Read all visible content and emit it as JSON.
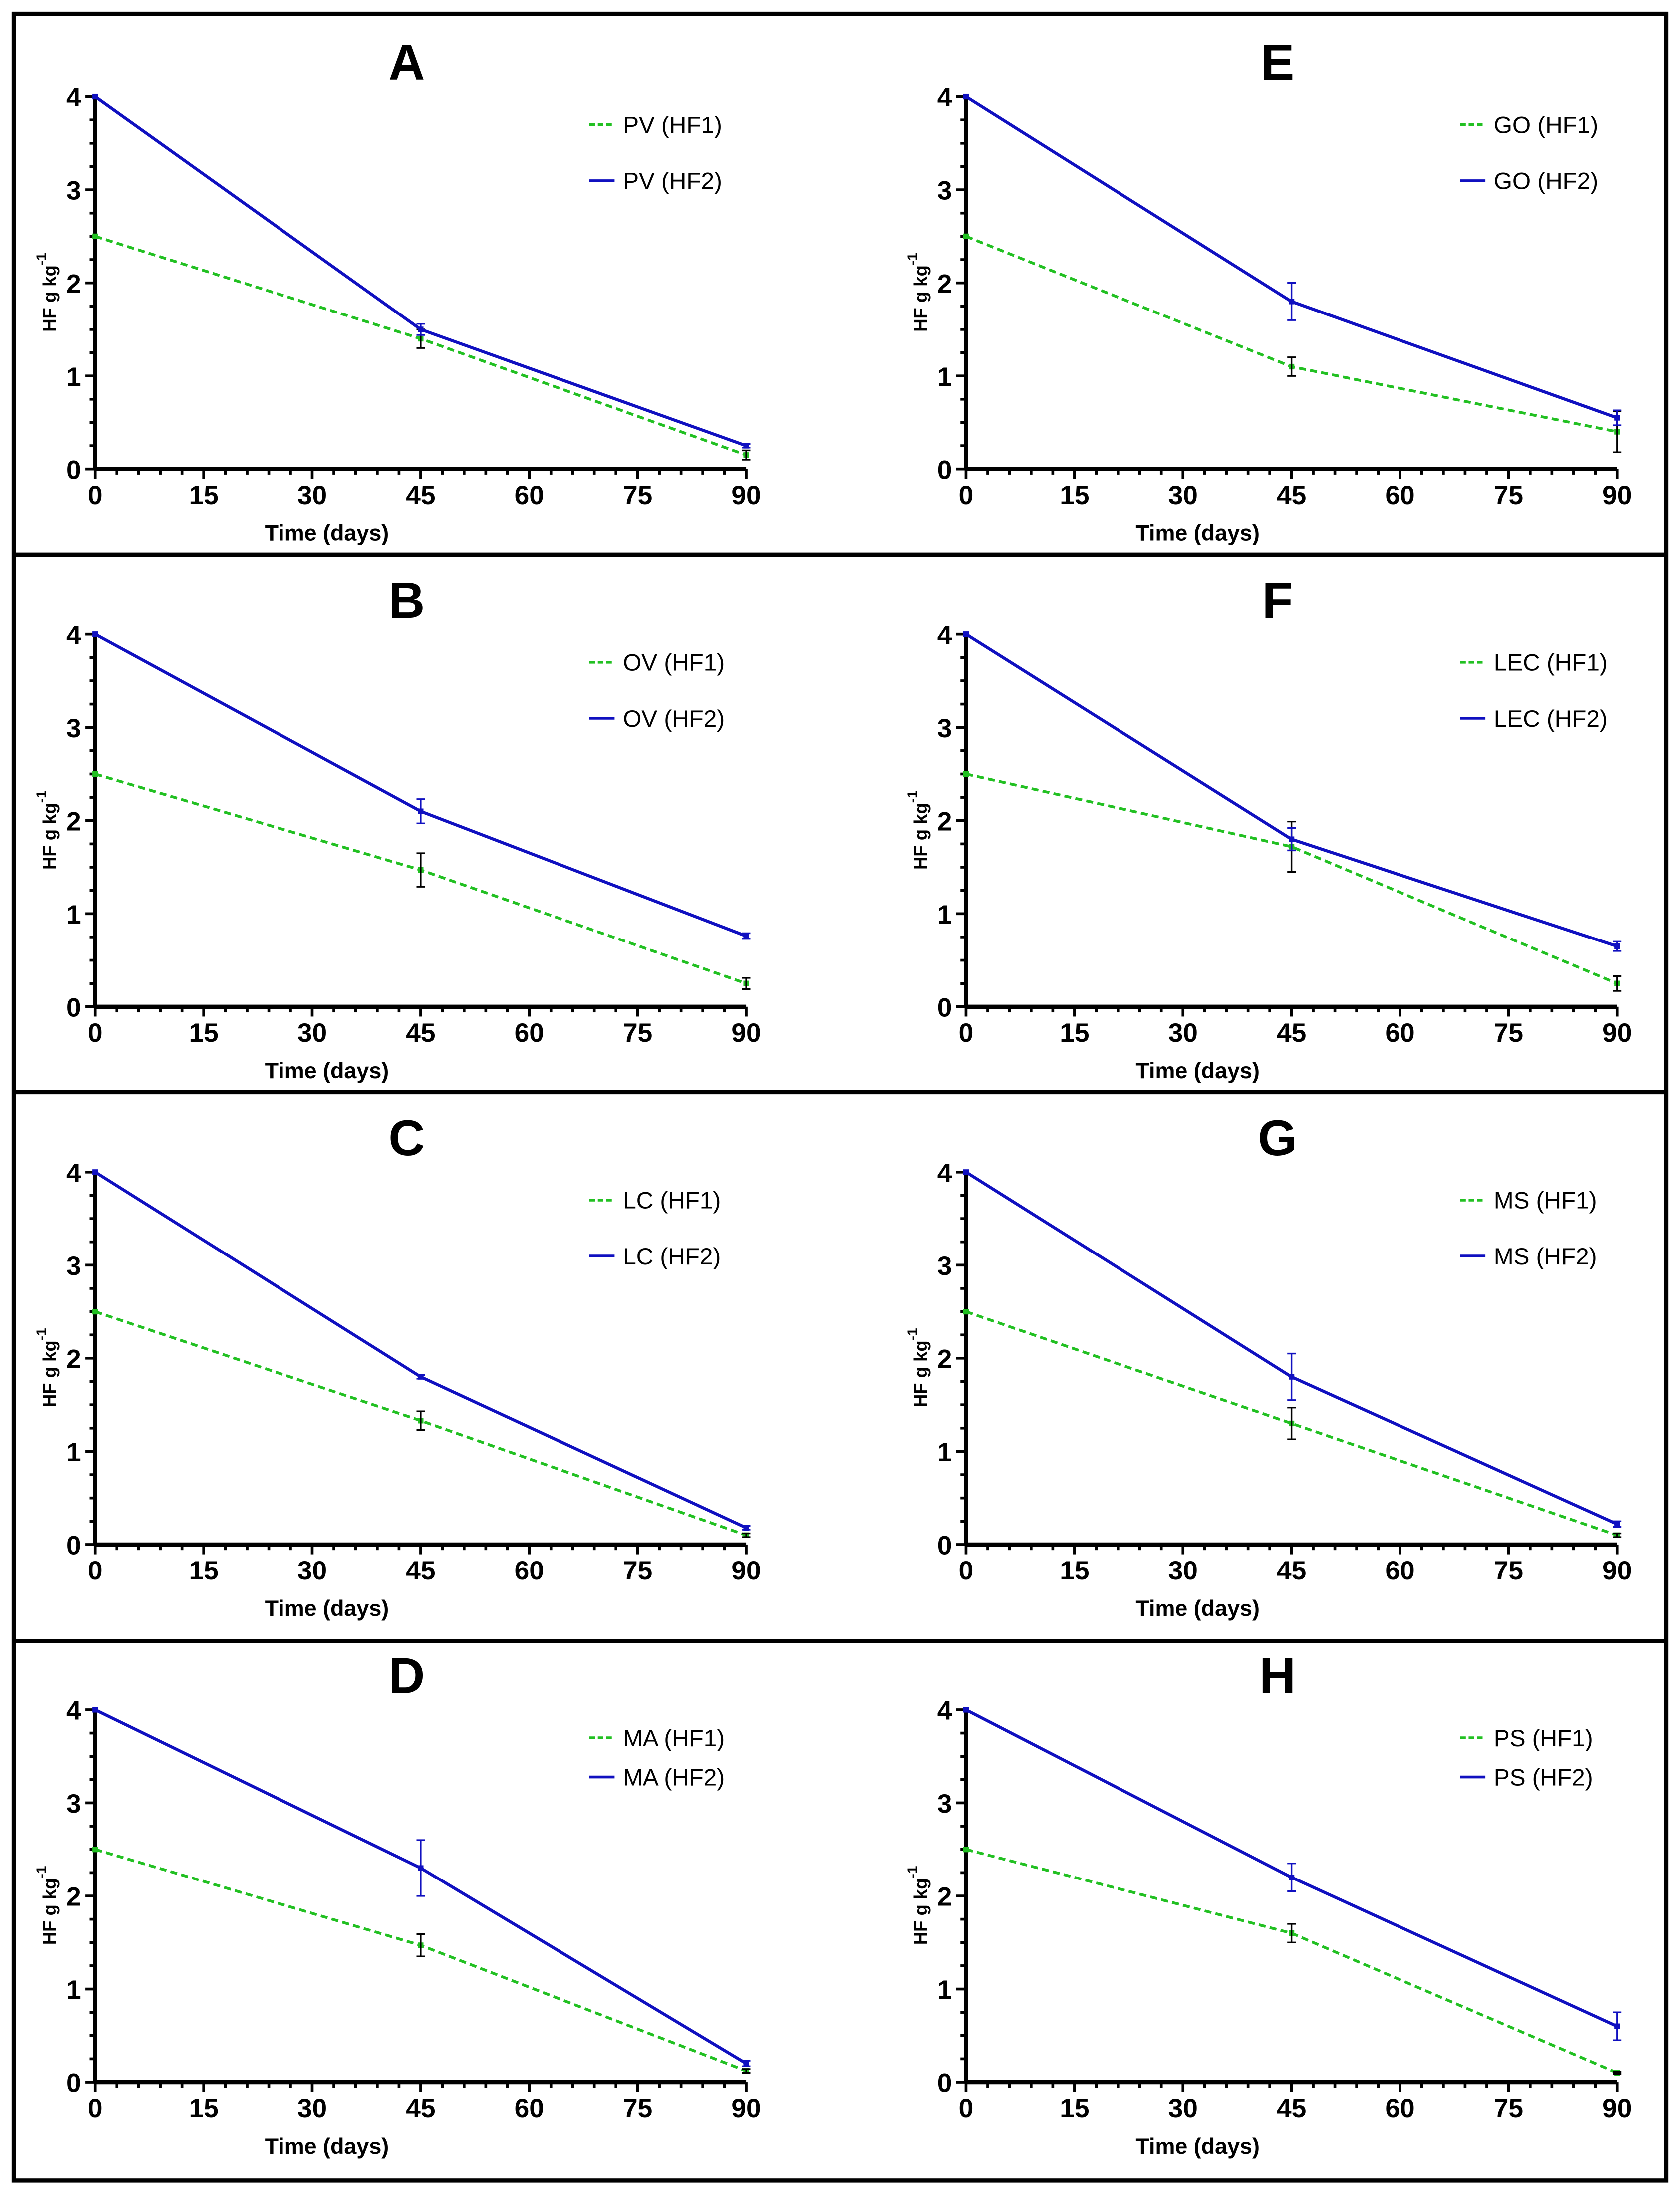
{
  "chart_data": [
    {
      "type": "line",
      "title": "A",
      "xlabel": "Time (days)",
      "ylabel": "HF g kg",
      "ylabel_sup": "-1",
      "x": [
        0,
        45,
        90
      ],
      "xticks": [
        0,
        15,
        30,
        45,
        60,
        75,
        90
      ],
      "yticks": [
        0,
        1,
        2,
        3,
        4
      ],
      "xlim": [
        0,
        90
      ],
      "ylim": [
        0,
        4
      ],
      "series": [
        {
          "name": "PV (HF1)",
          "values": [
            2.5,
            1.4,
            0.15
          ],
          "errors": [
            0,
            0.1,
            0.05
          ],
          "color": "#22c022",
          "dash": true
        },
        {
          "name": "PV (HF2)",
          "values": [
            4,
            1.5,
            0.25
          ],
          "errors": [
            0,
            0.06,
            0.02
          ],
          "color": "#1010c0",
          "dash": false
        }
      ]
    },
    {
      "type": "line",
      "title": "B",
      "xlabel": "Time (days)",
      "ylabel": "HF g kg",
      "ylabel_sup": "-1",
      "x": [
        0,
        45,
        90
      ],
      "xticks": [
        0,
        15,
        30,
        45,
        60,
        75,
        90
      ],
      "yticks": [
        0,
        1,
        2,
        3,
        4
      ],
      "xlim": [
        0,
        90
      ],
      "ylim": [
        0,
        4
      ],
      "series": [
        {
          "name": "OV (HF1)",
          "values": [
            2.5,
            1.47,
            0.25
          ],
          "errors": [
            0,
            0.18,
            0.06
          ],
          "color": "#22c022",
          "dash": true
        },
        {
          "name": "OV (HF2)",
          "values": [
            4,
            2.1,
            0.76
          ],
          "errors": [
            0,
            0.13,
            0.03
          ],
          "color": "#1010c0",
          "dash": false
        }
      ]
    },
    {
      "type": "line",
      "title": "C",
      "xlabel": "Time (days)",
      "ylabel": "HF g kg",
      "ylabel_sup": "-1",
      "x": [
        0,
        45,
        90
      ],
      "xticks": [
        0,
        15,
        30,
        45,
        60,
        75,
        90
      ],
      "yticks": [
        0,
        1,
        2,
        3,
        4
      ],
      "xlim": [
        0,
        90
      ],
      "ylim": [
        0,
        4
      ],
      "series": [
        {
          "name": "LC (HF1)",
          "values": [
            2.5,
            1.33,
            0.1
          ],
          "errors": [
            0,
            0.1,
            0.02
          ],
          "color": "#22c022",
          "dash": true
        },
        {
          "name": "LC (HF2)",
          "values": [
            4,
            1.8,
            0.18
          ],
          "errors": [
            0,
            0.02,
            0.02
          ],
          "color": "#1010c0",
          "dash": false
        }
      ]
    },
    {
      "type": "line",
      "title": "D",
      "xlabel": "Time (days)",
      "ylabel": "HF g kg",
      "ylabel_sup": "-1",
      "x": [
        0,
        45,
        90
      ],
      "xticks": [
        0,
        15,
        30,
        45,
        60,
        75,
        90
      ],
      "yticks": [
        0,
        1,
        2,
        3,
        4
      ],
      "xlim": [
        0,
        90
      ],
      "ylim": [
        0,
        4
      ],
      "series": [
        {
          "name": "MA (HF1)",
          "values": [
            2.5,
            1.47,
            0.12
          ],
          "errors": [
            0,
            0.12,
            0.02
          ],
          "color": "#22c022",
          "dash": true
        },
        {
          "name": "MA (HF2)",
          "values": [
            4,
            2.3,
            0.2
          ],
          "errors": [
            0,
            0.3,
            0.03
          ],
          "color": "#1010c0",
          "dash": false
        }
      ]
    },
    {
      "type": "line",
      "title": "E",
      "xlabel": "Time (days)",
      "ylabel": "HF g kg",
      "ylabel_sup": "-1",
      "x": [
        0,
        45,
        90
      ],
      "xticks": [
        0,
        15,
        30,
        45,
        60,
        75,
        90
      ],
      "yticks": [
        0,
        1,
        2,
        3,
        4
      ],
      "xlim": [
        0,
        90
      ],
      "ylim": [
        0,
        4
      ],
      "series": [
        {
          "name": "GO (HF1)",
          "values": [
            2.5,
            1.1,
            0.4
          ],
          "errors": [
            0,
            0.1,
            0.22
          ],
          "color": "#22c022",
          "dash": true
        },
        {
          "name": "GO (HF2)",
          "values": [
            4,
            1.8,
            0.55
          ],
          "errors": [
            0,
            0.2,
            0.08
          ],
          "color": "#1010c0",
          "dash": false
        }
      ]
    },
    {
      "type": "line",
      "title": "F",
      "xlabel": "Time (days)",
      "ylabel": "HF g kg",
      "ylabel_sup": "-1",
      "x": [
        0,
        45,
        90
      ],
      "xticks": [
        0,
        15,
        30,
        45,
        60,
        75,
        90
      ],
      "yticks": [
        0,
        1,
        2,
        3,
        4
      ],
      "xlim": [
        0,
        90
      ],
      "ylim": [
        0,
        4
      ],
      "series": [
        {
          "name": "LEC (HF1)",
          "values": [
            2.5,
            1.72,
            0.25
          ],
          "errors": [
            0,
            0.27,
            0.08
          ],
          "color": "#22c022",
          "dash": true
        },
        {
          "name": "LEC (HF2)",
          "values": [
            4,
            1.8,
            0.65
          ],
          "errors": [
            0,
            0.12,
            0.05
          ],
          "color": "#1010c0",
          "dash": false
        }
      ]
    },
    {
      "type": "line",
      "title": "G",
      "xlabel": "Time (days)",
      "ylabel": "HF g kg",
      "ylabel_sup": "-1",
      "x": [
        0,
        45,
        90
      ],
      "xticks": [
        0,
        15,
        30,
        45,
        60,
        75,
        90
      ],
      "yticks": [
        0,
        1,
        2,
        3,
        4
      ],
      "xlim": [
        0,
        90
      ],
      "ylim": [
        0,
        4
      ],
      "series": [
        {
          "name": "MS (HF1)",
          "values": [
            2.5,
            1.3,
            0.1
          ],
          "errors": [
            0,
            0.17,
            0.02
          ],
          "color": "#22c022",
          "dash": true
        },
        {
          "name": "MS (HF2)",
          "values": [
            4,
            1.8,
            0.22
          ],
          "errors": [
            0,
            0.25,
            0.03
          ],
          "color": "#1010c0",
          "dash": false
        }
      ]
    },
    {
      "type": "line",
      "title": "H",
      "xlabel": "Time (days)",
      "ylabel": "HF g kg",
      "ylabel_sup": "-1",
      "x": [
        0,
        45,
        90
      ],
      "xticks": [
        0,
        15,
        30,
        45,
        60,
        75,
        90
      ],
      "yticks": [
        0,
        1,
        2,
        3,
        4
      ],
      "xlim": [
        0,
        90
      ],
      "ylim": [
        0,
        4
      ],
      "series": [
        {
          "name": "PS (HF1)",
          "values": [
            2.5,
            1.6,
            0.1
          ],
          "errors": [
            0,
            0.1,
            0.01
          ],
          "color": "#22c022",
          "dash": true
        },
        {
          "name": "PS (HF2)",
          "values": [
            4,
            2.2,
            0.6
          ],
          "errors": [
            0,
            0.15,
            0.15
          ],
          "color": "#1010c0",
          "dash": false
        }
      ]
    }
  ]
}
